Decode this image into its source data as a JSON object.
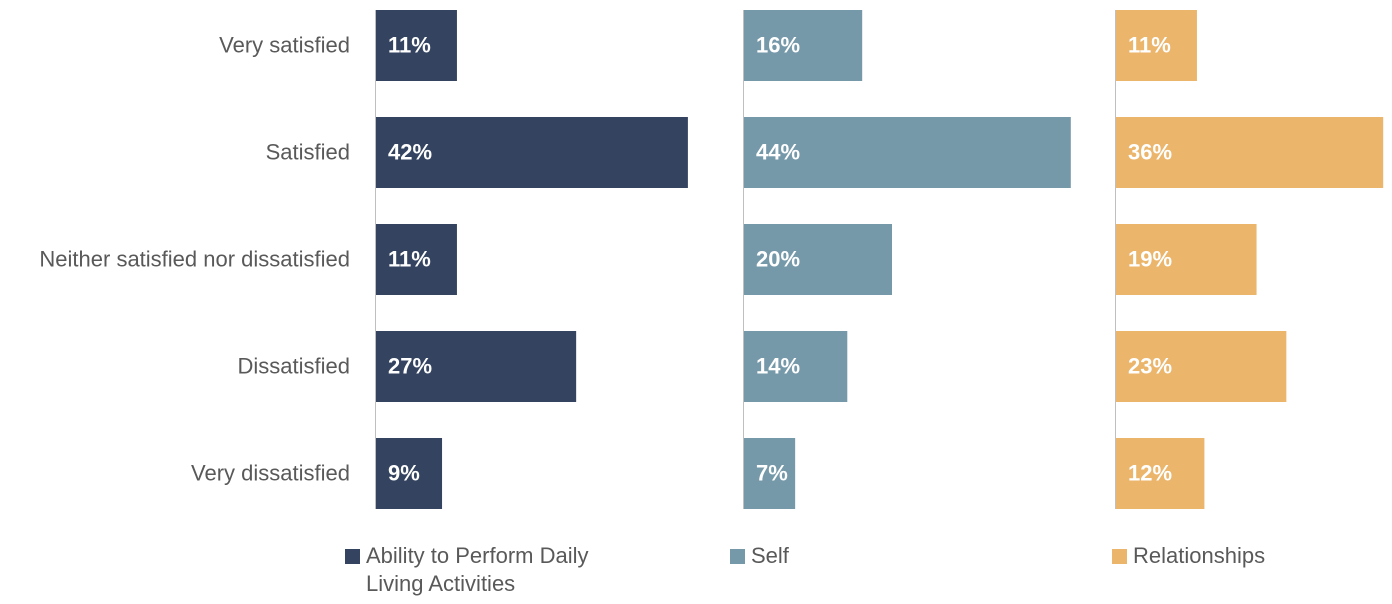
{
  "chart_data": {
    "type": "bar",
    "orientation": "horizontal",
    "categories": [
      "Very satisfied",
      "Satisfied",
      "Neither satisfied nor dissatisfied",
      "Dissatisfied",
      "Very dissatisfied"
    ],
    "series": [
      {
        "name": "Ability to Perform Daily Living Activities",
        "color": "#334360",
        "values": [
          11,
          42,
          11,
          27,
          9
        ],
        "value_labels": [
          "11%",
          "42%",
          "11%",
          "27%",
          "9%"
        ]
      },
      {
        "name": "Self",
        "color": "#7699aa",
        "values": [
          16,
          44,
          20,
          14,
          7
        ],
        "value_labels": [
          "16%",
          "44%",
          "20%",
          "14%",
          "7%"
        ]
      },
      {
        "name": "Relationships",
        "color": "#ebb56b",
        "values": [
          11,
          36,
          19,
          23,
          12
        ],
        "value_labels": [
          "11%",
          "36%",
          "19%",
          "23%",
          "12%"
        ]
      }
    ]
  }
}
